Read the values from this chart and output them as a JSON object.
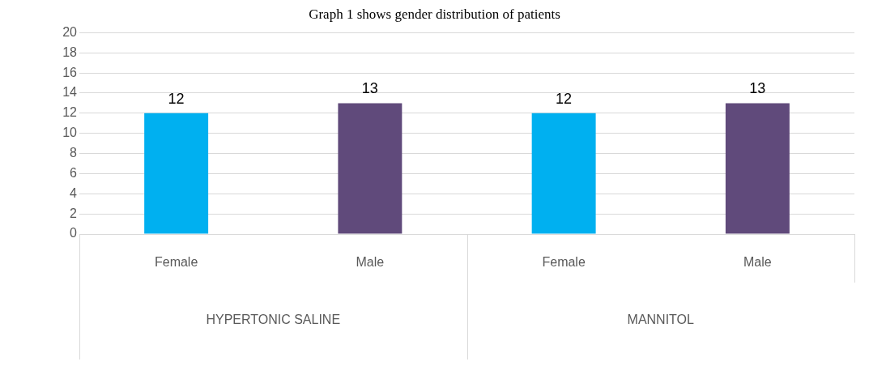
{
  "chart_data": {
    "type": "bar",
    "title": "Graph 1 shows gender distribution of patients",
    "categories": [
      "Female",
      "Male",
      "Female",
      "Male"
    ],
    "values": [
      12,
      13,
      12,
      13
    ],
    "colors": [
      "#00b0f0",
      "#604a7b",
      "#00b0f0",
      "#604a7b"
    ],
    "ylim": [
      0,
      20
    ],
    "yticks": [
      0,
      2,
      4,
      6,
      8,
      10,
      12,
      14,
      16,
      18,
      20
    ],
    "grid": "y",
    "data_labels": true,
    "legend": false,
    "annotations": [
      "HYPERTONIC SALINE",
      "MANNITOL"
    ]
  }
}
